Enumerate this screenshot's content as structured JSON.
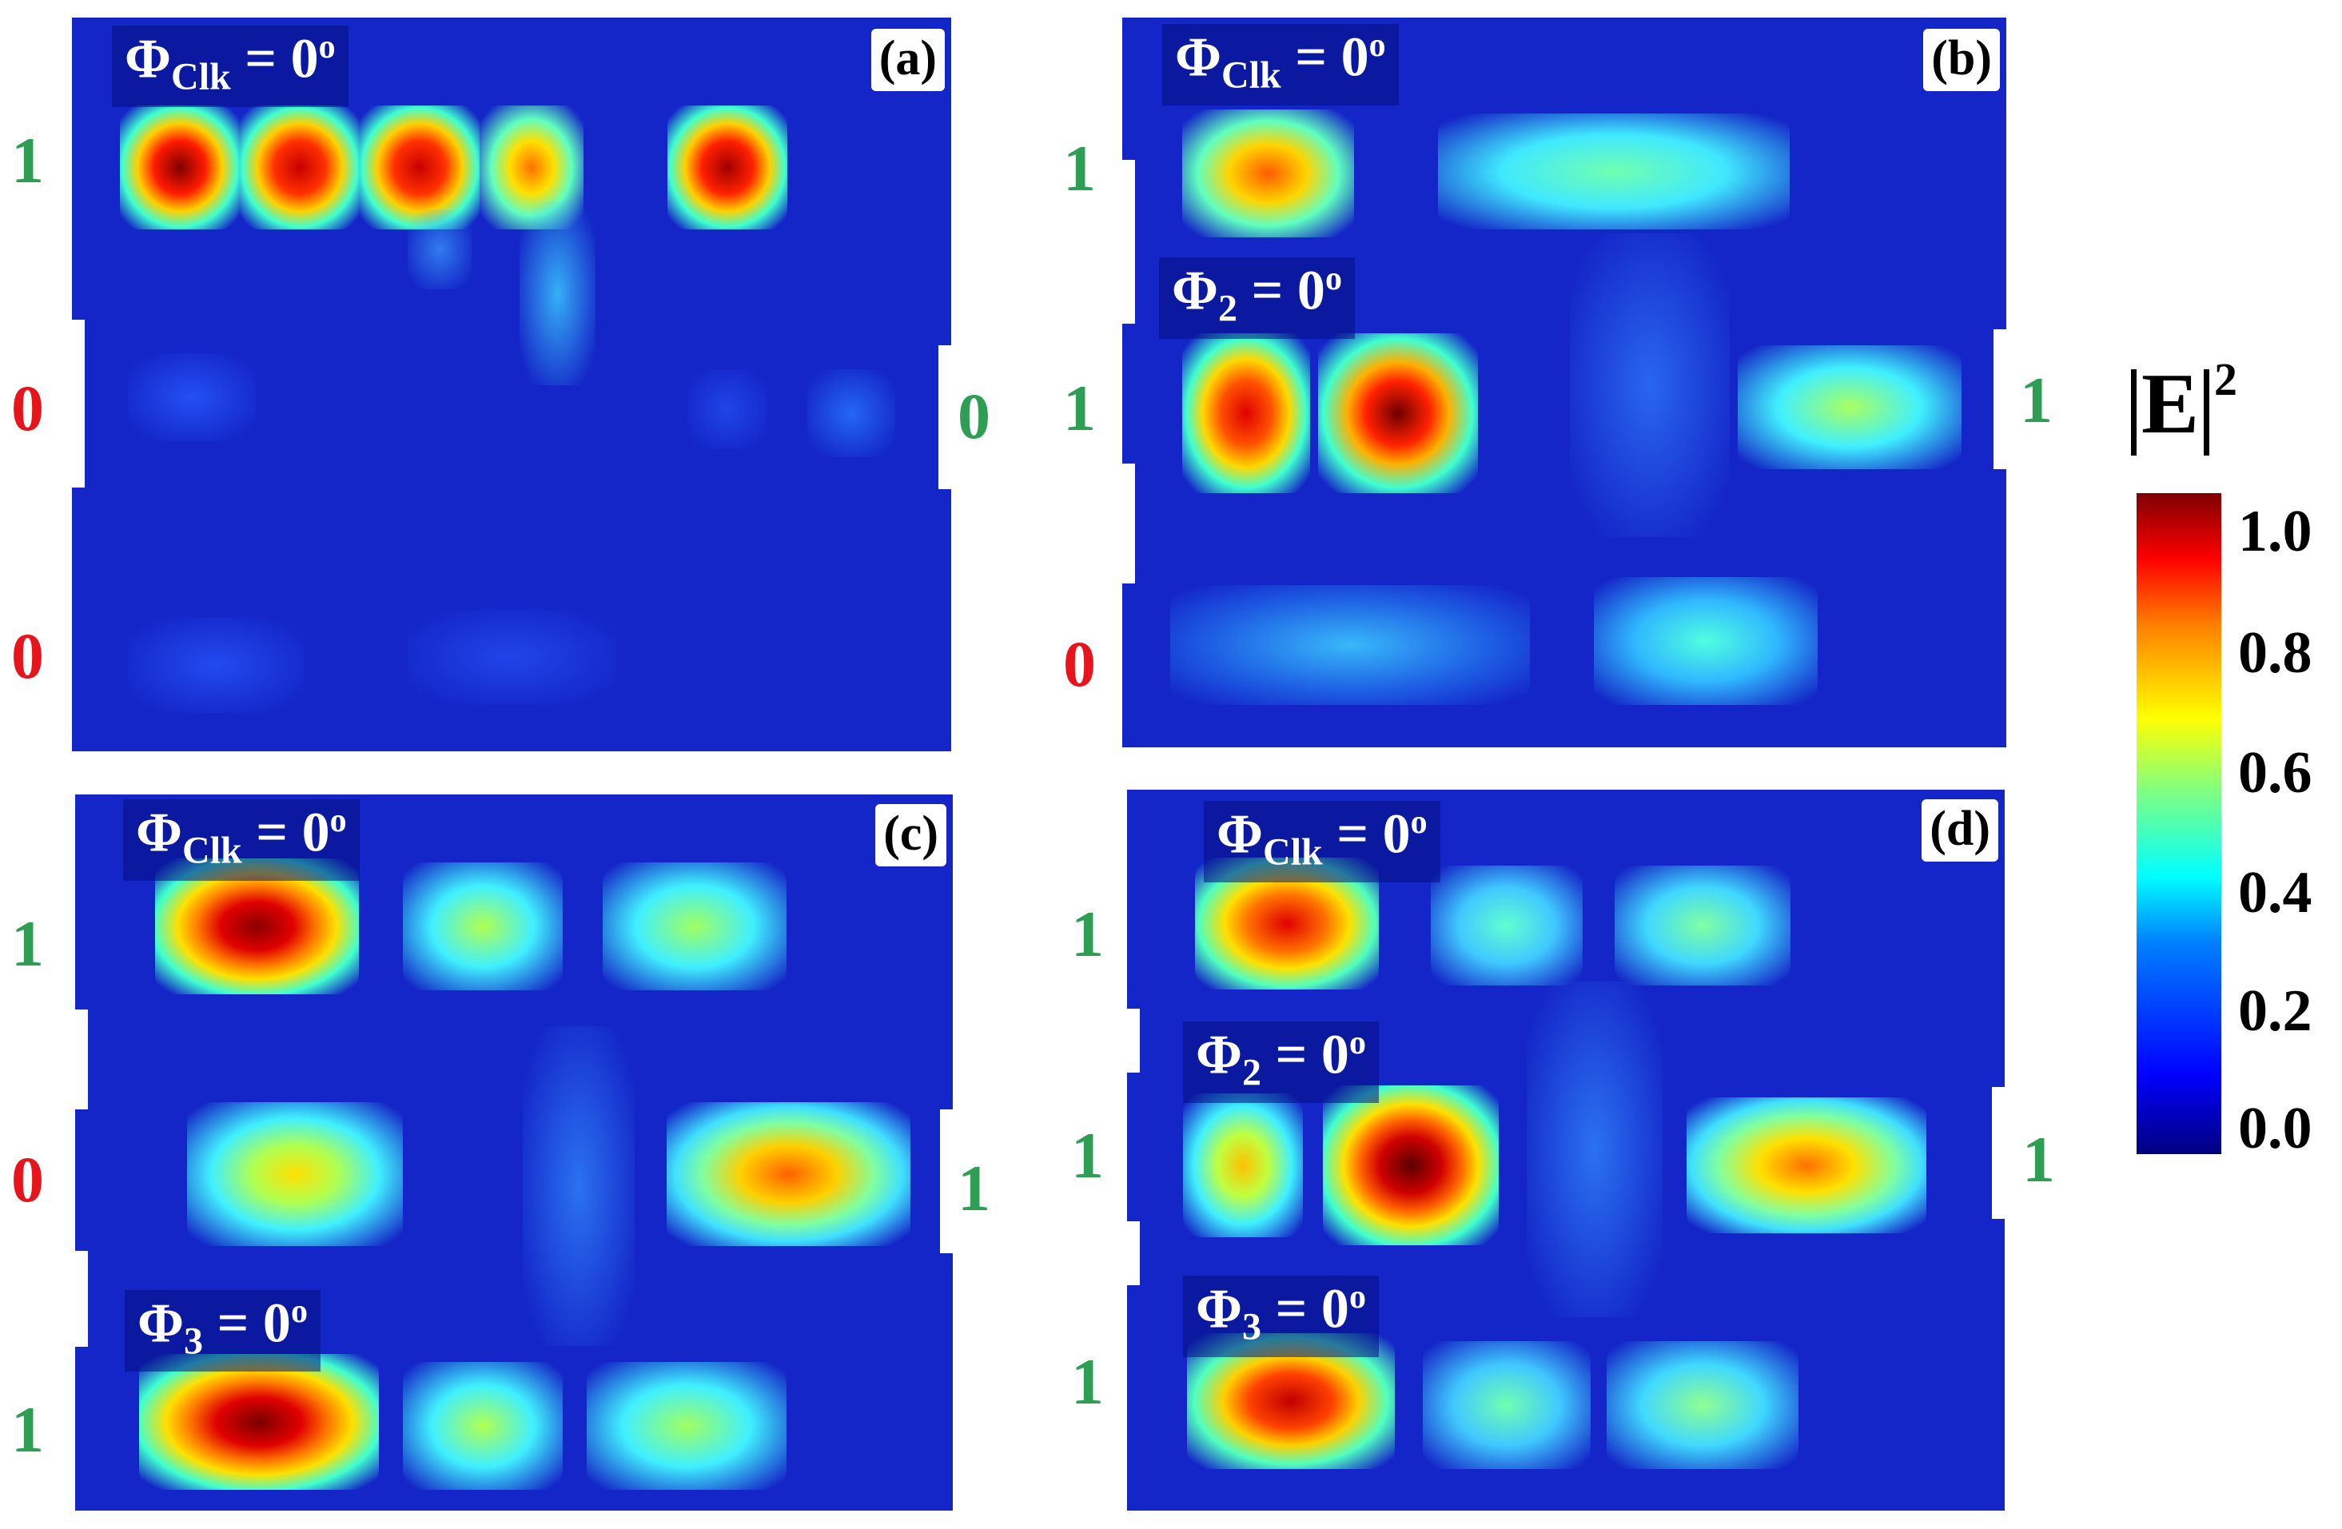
{
  "panels": {
    "a": {
      "tag": "(a)",
      "phi": [
        {
          "sym": "Φ",
          "sub": "Clk",
          "eq": " = 0",
          "sup": "o"
        }
      ],
      "left_labels": [
        "1",
        "0",
        "0"
      ],
      "right_labels": [
        "0"
      ]
    },
    "b": {
      "tag": "(b)",
      "phi": [
        {
          "sym": "Φ",
          "sub": "Clk",
          "eq": " = 0",
          "sup": "o"
        },
        {
          "sym": "Φ",
          "sub": "2",
          "eq": " = 0",
          "sup": "o"
        }
      ],
      "left_labels": [
        "1",
        "1",
        "0"
      ],
      "right_labels": [
        "1"
      ]
    },
    "c": {
      "tag": "(c)",
      "phi": [
        {
          "sym": "Φ",
          "sub": "Clk",
          "eq": " = 0",
          "sup": "o"
        },
        {
          "sym": "Φ",
          "sub": "3",
          "eq": " = 0",
          "sup": "o"
        }
      ],
      "left_labels": [
        "1",
        "0",
        "1"
      ],
      "right_labels": [
        "1"
      ]
    },
    "d": {
      "tag": "(d)",
      "phi": [
        {
          "sym": "Φ",
          "sub": "Clk",
          "eq": " = 0",
          "sup": "o"
        },
        {
          "sym": "Φ",
          "sub": "2",
          "eq": " = 0",
          "sup": "o"
        },
        {
          "sym": "Φ",
          "sub": "3",
          "eq": " = 0",
          "sup": "o"
        }
      ],
      "left_labels": [
        "1",
        "1",
        "1"
      ],
      "right_labels": [
        "1"
      ]
    }
  },
  "colorbar": {
    "title": "E",
    "title_sup": "2",
    "ticks": [
      "1.0",
      "0.8",
      "0.6",
      "0.4",
      "0.2",
      "0.0"
    ],
    "range": [
      0.0,
      1.0
    ],
    "colormap": [
      "#00007f",
      "#0000ff",
      "#00ffff",
      "#ffff00",
      "#ff0000",
      "#7f0000"
    ]
  },
  "colors": {
    "one_label": "#2e9e55",
    "zero_label": "#e8141c",
    "background": "#1426c8"
  }
}
